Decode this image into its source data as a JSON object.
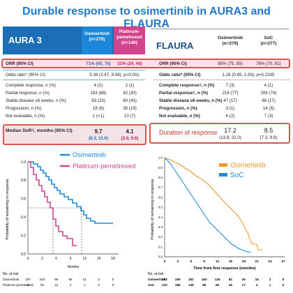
{
  "title": "Durable response to osimertinib in AURA3 and FLAURA",
  "aura3": {
    "header": "AURA 3",
    "col1": [
      "Osimertinib",
      "(n=279)"
    ],
    "col2": [
      "Platinum-",
      "pemetrexed",
      "(n=140)"
    ],
    "orr": {
      "label": "ORR (95% CI)",
      "v1": "71% (65, 76)",
      "v2": "31% (24, 40)"
    },
    "odds": {
      "label": "Odds ratio* (95% CI)",
      "value": "5.39 (3.47, 8.48); p<0.001"
    },
    "rows": [
      {
        "label": "Complete response, n (%)",
        "v1": "4 (1)",
        "v2": "2 (1)"
      },
      {
        "label": "Partial response, n (%)",
        "v1": "193 (69)",
        "v2": "42 (30)"
      },
      {
        "label": "Stable disease ≥6 weeks, n (%)",
        "v1": "63 (23)",
        "v2": "60 (43)"
      },
      {
        "label": "Progression, n (%)",
        "v1": "18 (6)",
        "v2": "26 (19)"
      },
      {
        "label": "Not evaluable, n (%)",
        "v1": "1 (<1)",
        "v2": "10 (7)"
      }
    ],
    "dor": {
      "label": "Median DoR†, months (95% CI)",
      "v1a": "9.7",
      "v1b": "(8.3, 11.6)",
      "v2a": "4.1",
      "v2b": "(3.0, 5.6)"
    }
  },
  "flaura": {
    "header": "FLAURA",
    "col1": [
      "Osimertinib",
      "(n=279)"
    ],
    "col2": [
      "SoC",
      "(n=277)"
    ],
    "orr": {
      "label": "ORR (95% CI)",
      "v1": "80% (75, 85)",
      "v2": "76% (70, 81)"
    },
    "odds": {
      "label": "Odds ratio* (95% CI)",
      "value": "1.28 (0.85, 1.93); p=0.2335"
    },
    "rows": [
      {
        "label": "Complete response†, n (%)",
        "v1": "7 (3)",
        "v2": "4 (1)"
      },
      {
        "label": "Partial response†, n (%)",
        "v1": "216 (77)",
        "v2": "206 (74)"
      },
      {
        "label": "Stable disease ≥6 weeks, n (%)",
        "v1": "47 (17)",
        "v2": "46 (17)"
      },
      {
        "label": "Progression, n (%)",
        "v1": "3 (1)",
        "v2": "14 (5)"
      },
      {
        "label": "Not evaluable, n (%)",
        "v1": "6 (2)",
        "v2": "7 (3)"
      }
    ],
    "dor": {
      "label": "Duration of response",
      "v1a": "17.2",
      "v1b": "(13.8, 22.0)",
      "v2a": "8.5",
      "v2b": "(7.3, 9.8)"
    }
  },
  "km_left": {
    "ylabel": "Probability of remaining in response",
    "xlabel": "Months",
    "legend": [
      {
        "name": "Osimertinib",
        "color": "#1e88d8"
      },
      {
        "name": "Platinum-pemetrexed",
        "color": "#d2448e"
      }
    ],
    "yticks": [
      "0.0",
      "0.2",
      "0.4",
      "0.6",
      "0.8",
      "1.0"
    ],
    "xticks": [
      "0",
      "3",
      "6",
      "9",
      "12",
      "15",
      "18"
    ],
    "risk_title": "No. at risk",
    "risk_rows": [
      {
        "label": "Osimertinib",
        "values": [
          "197",
          "163",
          "96",
          "56",
          "21",
          "3",
          "0"
        ]
      },
      {
        "label": "Platinum-pemetrexed",
        "values": [
          "44",
          "29",
          "12",
          "4",
          "1",
          "0",
          "0"
        ]
      }
    ]
  },
  "km_right": {
    "ylabel": "Probability of remaining in response",
    "xlabel": "Time from first response (months)",
    "legend": [
      {
        "name": "Osimertinib",
        "color": "#f0962c"
      },
      {
        "name": "SoC",
        "color": "#1e88d8"
      }
    ],
    "yticks": [
      "0.0",
      "0.1",
      "0.2",
      "0.3",
      "0.4",
      "0.5",
      "0.6",
      "0.7",
      "0.8",
      "0.9",
      "1.0"
    ],
    "xticks": [
      "0",
      "3",
      "6",
      "9",
      "12",
      "15",
      "18",
      "21",
      "24",
      "27"
    ],
    "risk_title": "No. at risk",
    "risk_rows": [
      {
        "label": "Osimertinib",
        "values": [
          "223",
          "205",
          "181",
          "160",
          "126",
          "82",
          "40",
          "16",
          "2",
          "0"
        ]
      },
      {
        "label": "SoC",
        "values": [
          "210",
          "180",
          "136",
          "95",
          "69",
          "39",
          "17",
          "4",
          "1",
          "0"
        ]
      }
    ]
  }
}
